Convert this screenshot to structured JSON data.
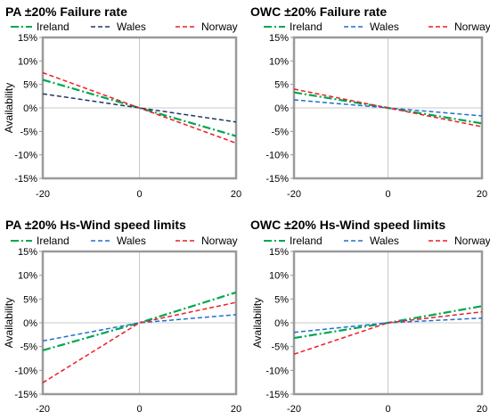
{
  "chart_data": [
    {
      "type": "line",
      "title": "PA ±20% Failure rate",
      "ylabel": "Availability",
      "xlabel": "",
      "xlim": [
        -20,
        20
      ],
      "ylim": [
        -15,
        15
      ],
      "x_ticks": [
        "-20",
        "0",
        "20"
      ],
      "y_ticks": [
        "15%",
        "10%",
        "5%",
        "0%",
        "-5%",
        "-10%",
        "-15%"
      ],
      "legend": "top",
      "x": [
        -20,
        0,
        20
      ],
      "series": [
        {
          "name": "Ireland",
          "values": [
            6,
            0,
            -6
          ],
          "color": "#00a651",
          "dash": "dashdot"
        },
        {
          "name": "Wales",
          "values": [
            3,
            0,
            -3
          ],
          "color": "#1f3864",
          "dash": "dash"
        },
        {
          "name": "Norway",
          "values": [
            7.5,
            0,
            -7.5
          ],
          "color": "#ee1c25",
          "dash": "dash"
        }
      ]
    },
    {
      "type": "line",
      "title": "OWC ±20% Failure rate",
      "ylabel": "",
      "xlabel": "",
      "xlim": [
        -20,
        20
      ],
      "ylim": [
        -15,
        15
      ],
      "x_ticks": [
        "-20",
        "0",
        "20"
      ],
      "y_ticks": [
        "15%",
        "10%",
        "5%",
        "0%",
        "-5%",
        "-10%",
        "-15%"
      ],
      "legend": "top",
      "x": [
        -20,
        0,
        20
      ],
      "series": [
        {
          "name": "Ireland",
          "values": [
            3.3,
            0,
            -3.3
          ],
          "color": "#00a651",
          "dash": "dashdot"
        },
        {
          "name": "Wales",
          "values": [
            1.7,
            0,
            -1.7
          ],
          "color": "#1f6fd0",
          "dash": "dash"
        },
        {
          "name": "Norway",
          "values": [
            4,
            0,
            -4
          ],
          "color": "#ee1c25",
          "dash": "dash"
        }
      ]
    },
    {
      "type": "line",
      "title": "PA ±20% Hs-Wind speed limits",
      "ylabel": "Availability",
      "xlabel": "",
      "xlim": [
        -20,
        20
      ],
      "ylim": [
        -15,
        15
      ],
      "x_ticks": [
        "-20",
        "0",
        "20"
      ],
      "y_ticks": [
        "15%",
        "10%",
        "5%",
        "0%",
        "-5%",
        "-10%",
        "-15%"
      ],
      "legend": "top",
      "x": [
        -20,
        0,
        20
      ],
      "series": [
        {
          "name": "Ireland",
          "values": [
            -5.8,
            0,
            6.4
          ],
          "color": "#00a651",
          "dash": "dashdot"
        },
        {
          "name": "Wales",
          "values": [
            -3.8,
            0,
            1.7
          ],
          "color": "#1f6fd0",
          "dash": "dash"
        },
        {
          "name": "Norway",
          "values": [
            -12.6,
            0,
            4.3
          ],
          "color": "#ee1c25",
          "dash": "dash"
        }
      ]
    },
    {
      "type": "line",
      "title": "OWC ±20% Hs-Wind speed limits",
      "ylabel": "Availability",
      "xlabel": "",
      "xlim": [
        -20,
        20
      ],
      "ylim": [
        -15,
        15
      ],
      "x_ticks": [
        "-20",
        "0",
        "20"
      ],
      "y_ticks": [
        "15%",
        "10%",
        "5%",
        "0%",
        "-5%",
        "-10%",
        "-15%"
      ],
      "legend": "top",
      "x": [
        -20,
        0,
        20
      ],
      "series": [
        {
          "name": "Ireland",
          "values": [
            -3.2,
            0,
            3.5
          ],
          "color": "#00a651",
          "dash": "dashdot"
        },
        {
          "name": "Wales",
          "values": [
            -2,
            0,
            1
          ],
          "color": "#1f6fd0",
          "dash": "dash"
        },
        {
          "name": "Norway",
          "values": [
            -6.6,
            0,
            2.3
          ],
          "color": "#ee1c25",
          "dash": "dash"
        }
      ]
    }
  ]
}
